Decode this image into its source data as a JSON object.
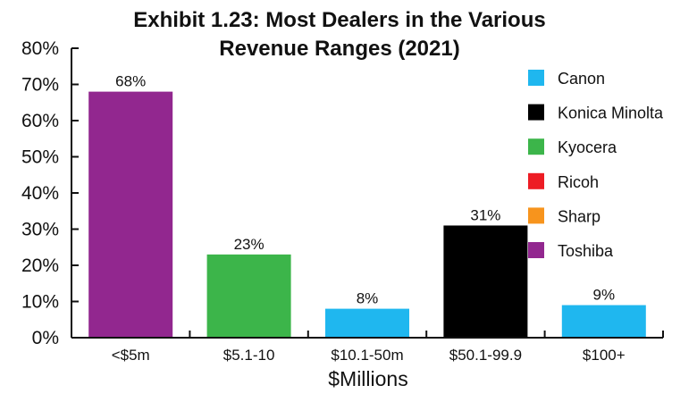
{
  "chart_data": {
    "type": "bar",
    "title_line1": "Exhibit 1.23: Most Dealers in the Various",
    "title_line2": "Revenue Ranges (2021)",
    "xlabel": "$Millions",
    "ylabel": "",
    "ylim": [
      0,
      80
    ],
    "yticks": [
      "0%",
      "10%",
      "20%",
      "30%",
      "40%",
      "50%",
      "60%",
      "70%",
      "80%"
    ],
    "categories": [
      "<$5m",
      "$5.1-10",
      "$10.1-50m",
      "$50.1-99.9",
      "$100+"
    ],
    "values": [
      68,
      23,
      8,
      31,
      9
    ],
    "value_labels": [
      "68%",
      "23%",
      "8%",
      "31%",
      "9%"
    ],
    "bar_brands": [
      "Toshiba",
      "Kyocera",
      "Canon",
      "Konica Minolta",
      "Canon"
    ],
    "legend_position": "right",
    "grid": false,
    "legend": [
      {
        "name": "Canon",
        "color": "#1fb7ef"
      },
      {
        "name": "Konica Minolta",
        "color": "#000000"
      },
      {
        "name": "Kyocera",
        "color": "#3cb54a"
      },
      {
        "name": "Ricoh",
        "color": "#ed1c24"
      },
      {
        "name": "Sharp",
        "color": "#f7941d"
      },
      {
        "name": "Toshiba",
        "color": "#92278f"
      }
    ]
  }
}
